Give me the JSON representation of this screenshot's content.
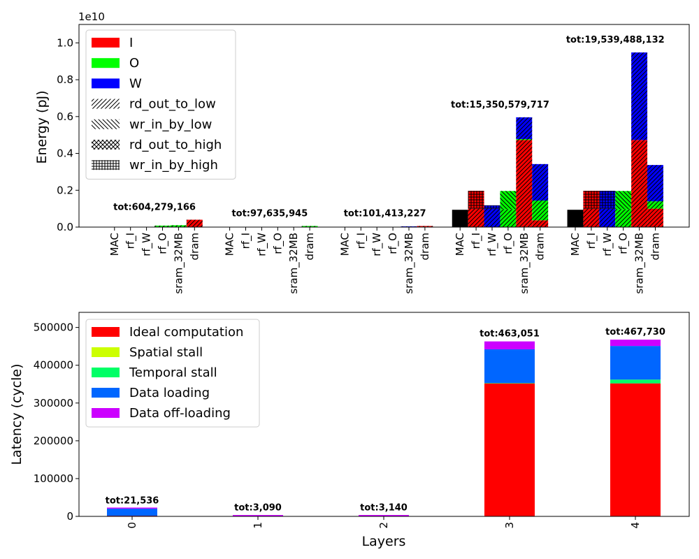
{
  "chart_data": [
    {
      "type": "bar",
      "subtype": "grouped-stacked-hatched",
      "title": "",
      "xlabel": "",
      "ylabel": "Energy (pJ)",
      "scale_label": "1e10",
      "ylim": [
        0,
        1.1
      ],
      "yticks": [
        "0.0",
        "0.2",
        "0.4",
        "0.6",
        "0.8",
        "1.0"
      ],
      "grid": false,
      "legend_position": "top-left",
      "legend": [
        {
          "label": "I",
          "swatch": "color",
          "color": "#ff0000"
        },
        {
          "label": "O",
          "swatch": "color",
          "color": "#00ff00"
        },
        {
          "label": "W",
          "swatch": "color",
          "color": "#0000ff"
        },
        {
          "label": "rd_out_to_low",
          "swatch": "hatch",
          "hatch": "forward"
        },
        {
          "label": "wr_in_by_low",
          "swatch": "hatch",
          "hatch": "backward"
        },
        {
          "label": "rd_out_to_high",
          "swatch": "hatch",
          "hatch": "cross"
        },
        {
          "label": "wr_in_by_high",
          "swatch": "hatch",
          "hatch": "grid"
        }
      ],
      "categories": [
        "MAC",
        "rf_I",
        "rf_W",
        "rf_O",
        "sram_32MB",
        "dram"
      ],
      "groups": [
        {
          "layer": "0",
          "total_label": "tot:604,279,166",
          "bars": [
            {
              "cat": "MAC",
              "segments": []
            },
            {
              "cat": "rf_I",
              "segments": []
            },
            {
              "cat": "rf_W",
              "segments": []
            },
            {
              "cat": "rf_O",
              "segments": [
                {
                  "color": "#00ff00",
                  "hatch": "forward",
                  "value": 0.008
                }
              ]
            },
            {
              "cat": "sram_32MB",
              "segments": [
                {
                  "color": "#00ff00",
                  "hatch": "forward",
                  "value": 0.01
                }
              ]
            },
            {
              "cat": "dram",
              "segments": [
                {
                  "color": "#ff0000",
                  "hatch": "forward",
                  "value": 0.04
                }
              ]
            }
          ]
        },
        {
          "layer": "1",
          "total_label": "tot:97,635,945",
          "bars": [
            {
              "cat": "MAC",
              "segments": []
            },
            {
              "cat": "rf_I",
              "segments": []
            },
            {
              "cat": "rf_W",
              "segments": []
            },
            {
              "cat": "rf_O",
              "segments": []
            },
            {
              "cat": "sram_32MB",
              "segments": []
            },
            {
              "cat": "dram",
              "segments": [
                {
                  "color": "#00ff00",
                  "hatch": "forward",
                  "value": 0.006
                }
              ]
            }
          ]
        },
        {
          "layer": "2",
          "total_label": "tot:101,413,227",
          "bars": [
            {
              "cat": "MAC",
              "segments": []
            },
            {
              "cat": "rf_I",
              "segments": []
            },
            {
              "cat": "rf_W",
              "segments": []
            },
            {
              "cat": "rf_O",
              "segments": []
            },
            {
              "cat": "sram_32MB",
              "segments": [
                {
                  "color": "#0000ff",
                  "hatch": "forward",
                  "value": 0.004
                }
              ]
            },
            {
              "cat": "dram",
              "segments": [
                {
                  "color": "#ff0000",
                  "hatch": "forward",
                  "value": 0.006
                }
              ]
            }
          ]
        },
        {
          "layer": "3",
          "total_label": "tot:15,350,579,717",
          "bars": [
            {
              "cat": "MAC",
              "segments": [
                {
                  "color": "#000000",
                  "hatch": "none",
                  "value": 0.094
                }
              ]
            },
            {
              "cat": "rf_I",
              "segments": [
                {
                  "color": "#ff0000",
                  "hatch": "forward",
                  "value": 0.1
                },
                {
                  "color": "#ff0000",
                  "hatch": "grid",
                  "value": 0.097
                }
              ]
            },
            {
              "cat": "rf_W",
              "segments": [
                {
                  "color": "#0000ff",
                  "hatch": "forward",
                  "value": 0.1
                },
                {
                  "color": "#0000ff",
                  "hatch": "grid",
                  "value": 0.018
                }
              ]
            },
            {
              "cat": "rf_O",
              "segments": [
                {
                  "color": "#00ff00",
                  "hatch": "forward",
                  "value": 0.098
                },
                {
                  "color": "#00ff00",
                  "hatch": "backward",
                  "value": 0.098
                }
              ]
            },
            {
              "cat": "sram_32MB",
              "segments": [
                {
                  "color": "#ff0000",
                  "hatch": "forward",
                  "value": 0.473
                },
                {
                  "color": "#00ff00",
                  "hatch": "forward",
                  "value": 0.005
                },
                {
                  "color": "#0000ff",
                  "hatch": "forward",
                  "value": 0.118
                }
              ]
            },
            {
              "cat": "dram",
              "segments": [
                {
                  "color": "#ff0000",
                  "hatch": "forward",
                  "value": 0.037
                },
                {
                  "color": "#00ff00",
                  "hatch": "forward",
                  "value": 0.107
                },
                {
                  "color": "#0000ff",
                  "hatch": "forward",
                  "value": 0.198
                }
              ]
            }
          ]
        },
        {
          "layer": "4",
          "total_label": "tot:19,539,488,132",
          "bars": [
            {
              "cat": "MAC",
              "segments": [
                {
                  "color": "#000000",
                  "hatch": "none",
                  "value": 0.094
                }
              ]
            },
            {
              "cat": "rf_I",
              "segments": [
                {
                  "color": "#ff0000",
                  "hatch": "forward",
                  "value": 0.1
                },
                {
                  "color": "#ff0000",
                  "hatch": "grid",
                  "value": 0.097
                }
              ]
            },
            {
              "cat": "rf_W",
              "segments": [
                {
                  "color": "#0000ff",
                  "hatch": "forward",
                  "value": 0.1
                },
                {
                  "color": "#0000ff",
                  "hatch": "grid",
                  "value": 0.097
                }
              ]
            },
            {
              "cat": "rf_O",
              "segments": [
                {
                  "color": "#00ff00",
                  "hatch": "forward",
                  "value": 0.098
                },
                {
                  "color": "#00ff00",
                  "hatch": "backward",
                  "value": 0.098
                }
              ]
            },
            {
              "cat": "sram_32MB",
              "segments": [
                {
                  "color": "#ff0000",
                  "hatch": "forward",
                  "value": 0.473
                },
                {
                  "color": "#0000ff",
                  "hatch": "forward",
                  "value": 0.475
                }
              ]
            },
            {
              "cat": "dram",
              "segments": [
                {
                  "color": "#ff0000",
                  "hatch": "forward",
                  "value": 0.1
                },
                {
                  "color": "#00ff00",
                  "hatch": "forward",
                  "value": 0.04
                },
                {
                  "color": "#0000ff",
                  "hatch": "forward",
                  "value": 0.197
                }
              ]
            }
          ]
        }
      ]
    },
    {
      "type": "bar",
      "subtype": "stacked",
      "title": "",
      "xlabel": "Layers",
      "ylabel": "Latency (cycle)",
      "ylim": [
        0,
        540000
      ],
      "yticks": [
        "0",
        "100000",
        "200000",
        "300000",
        "400000",
        "500000"
      ],
      "grid": false,
      "legend_position": "top-left",
      "categories": [
        "0",
        "1",
        "2",
        "3",
        "4"
      ],
      "series": [
        {
          "name": "Ideal computation",
          "color": "#ff0000",
          "values": [
            1500,
            200,
            200,
            352000,
            352000
          ]
        },
        {
          "name": "Spatial stall",
          "color": "#ccff00",
          "values": [
            0,
            0,
            0,
            0,
            0
          ]
        },
        {
          "name": "Temporal stall",
          "color": "#00ff66",
          "values": [
            0,
            0,
            0,
            1000,
            10000
          ]
        },
        {
          "name": "Data loading",
          "color": "#0066ff",
          "values": [
            19000,
            600,
            700,
            89000,
            89000
          ]
        },
        {
          "name": "Data off-loading",
          "color": "#cc00ff",
          "values": [
            1036,
            2290,
            2240,
            21051,
            16730
          ]
        }
      ],
      "total_labels": [
        "tot:21,536",
        "tot:3,090",
        "tot:3,140",
        "tot:463,051",
        "tot:467,730"
      ]
    }
  ]
}
